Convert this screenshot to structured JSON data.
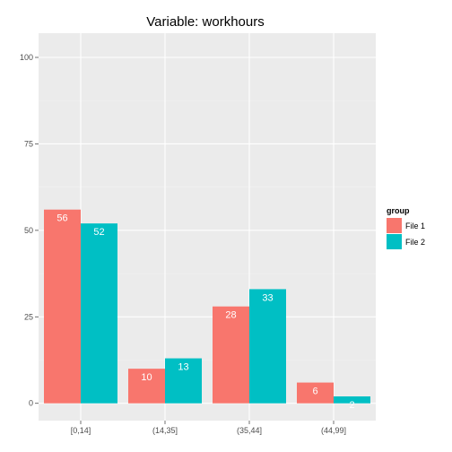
{
  "chart_data": {
    "type": "bar",
    "title": "Variable:  workhours",
    "xlabel": "",
    "ylabel": "",
    "categories": [
      "[0,14]",
      "(14,35]",
      "(35,44]",
      "(44,99]"
    ],
    "series": [
      {
        "name": "File 1",
        "values": [
          56,
          10,
          28,
          6
        ],
        "labels": [
          "56",
          "10",
          "28",
          "6"
        ],
        "color": "#F8766D"
      },
      {
        "name": "File 2",
        "values": [
          52,
          13,
          33,
          2
        ],
        "labels": [
          "52",
          "13",
          "33",
          "2"
        ],
        "color": "#00BFC4"
      }
    ],
    "ylim": [
      0,
      100
    ],
    "yticks": [
      0,
      25,
      50,
      75,
      100
    ],
    "ytick_labels": [
      "0",
      "25",
      "50",
      "75",
      "100"
    ],
    "grid": true,
    "legend": {
      "title": "group",
      "placement": "right"
    },
    "panel_background": "#EBEBEB",
    "grid_color": "#FFFFFF"
  }
}
